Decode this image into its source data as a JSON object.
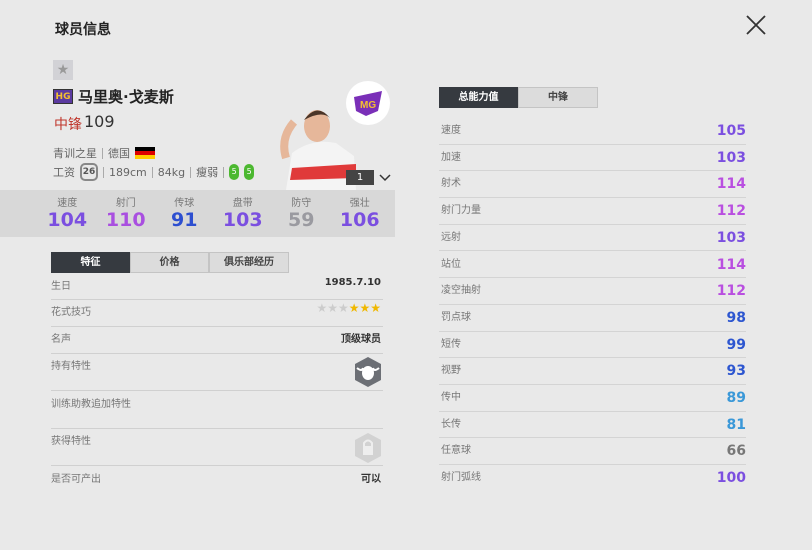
{
  "header": {
    "title": "球员信息",
    "close_icon": "close-icon"
  },
  "player": {
    "hg_badge": "HG",
    "name": "马里奥·戈麦斯",
    "position": "中锋",
    "overall": "109",
    "tag": "青训之星",
    "nation": "德国",
    "salary_label": "工资",
    "salary": "26",
    "height": "189cm",
    "weight": "84kg",
    "body": "瘦弱",
    "foot_left": "5",
    "foot_right": "5",
    "card_level": "1"
  },
  "stats": [
    {
      "label": "速度",
      "value": "104",
      "color": "#7b4fe0"
    },
    {
      "label": "射门",
      "value": "110",
      "color": "#a94fe0"
    },
    {
      "label": "传球",
      "value": "91",
      "color": "#2d4fd0"
    },
    {
      "label": "盘带",
      "value": "103",
      "color": "#7b4fe0"
    },
    {
      "label": "防守",
      "value": "59",
      "color": "#9a9aa0"
    },
    {
      "label": "强壮",
      "value": "106",
      "color": "#7b4fe0"
    }
  ],
  "left_tabs": [
    "特征",
    "价格",
    "俱乐部经历"
  ],
  "traits": {
    "birthday_label": "生日",
    "birthday": "1985.7.10",
    "skill_label": "花式技巧",
    "skill_stars": 3,
    "skill_max": 6,
    "fame_label": "名声",
    "fame": "顶级球员",
    "own_label": "持有特性",
    "coach_label": "训练助教追加特性",
    "gain_label": "获得特性",
    "produce_label": "是否可产出",
    "produce": "可以"
  },
  "right_tabs": [
    "总能力值",
    "中锋"
  ],
  "attributes": [
    {
      "label": "速度",
      "value": "105",
      "color": "#7b4fe0"
    },
    {
      "label": "加速",
      "value": "103",
      "color": "#7b4fe0"
    },
    {
      "label": "射术",
      "value": "114",
      "color": "#b94fe0"
    },
    {
      "label": "射门力量",
      "value": "112",
      "color": "#b94fe0"
    },
    {
      "label": "远射",
      "value": "103",
      "color": "#7b4fe0"
    },
    {
      "label": "站位",
      "value": "114",
      "color": "#b94fe0"
    },
    {
      "label": "凌空抽射",
      "value": "112",
      "color": "#b94fe0"
    },
    {
      "label": "罚点球",
      "value": "98",
      "color": "#2d56d0"
    },
    {
      "label": "短传",
      "value": "99",
      "color": "#2d56d0"
    },
    {
      "label": "视野",
      "value": "93",
      "color": "#2d56d0"
    },
    {
      "label": "传中",
      "value": "89",
      "color": "#3a98d8"
    },
    {
      "label": "长传",
      "value": "81",
      "color": "#3a98d8"
    },
    {
      "label": "任意球",
      "value": "66",
      "color": "#777777"
    },
    {
      "label": "射门弧线",
      "value": "100",
      "color": "#7b4fe0"
    }
  ]
}
